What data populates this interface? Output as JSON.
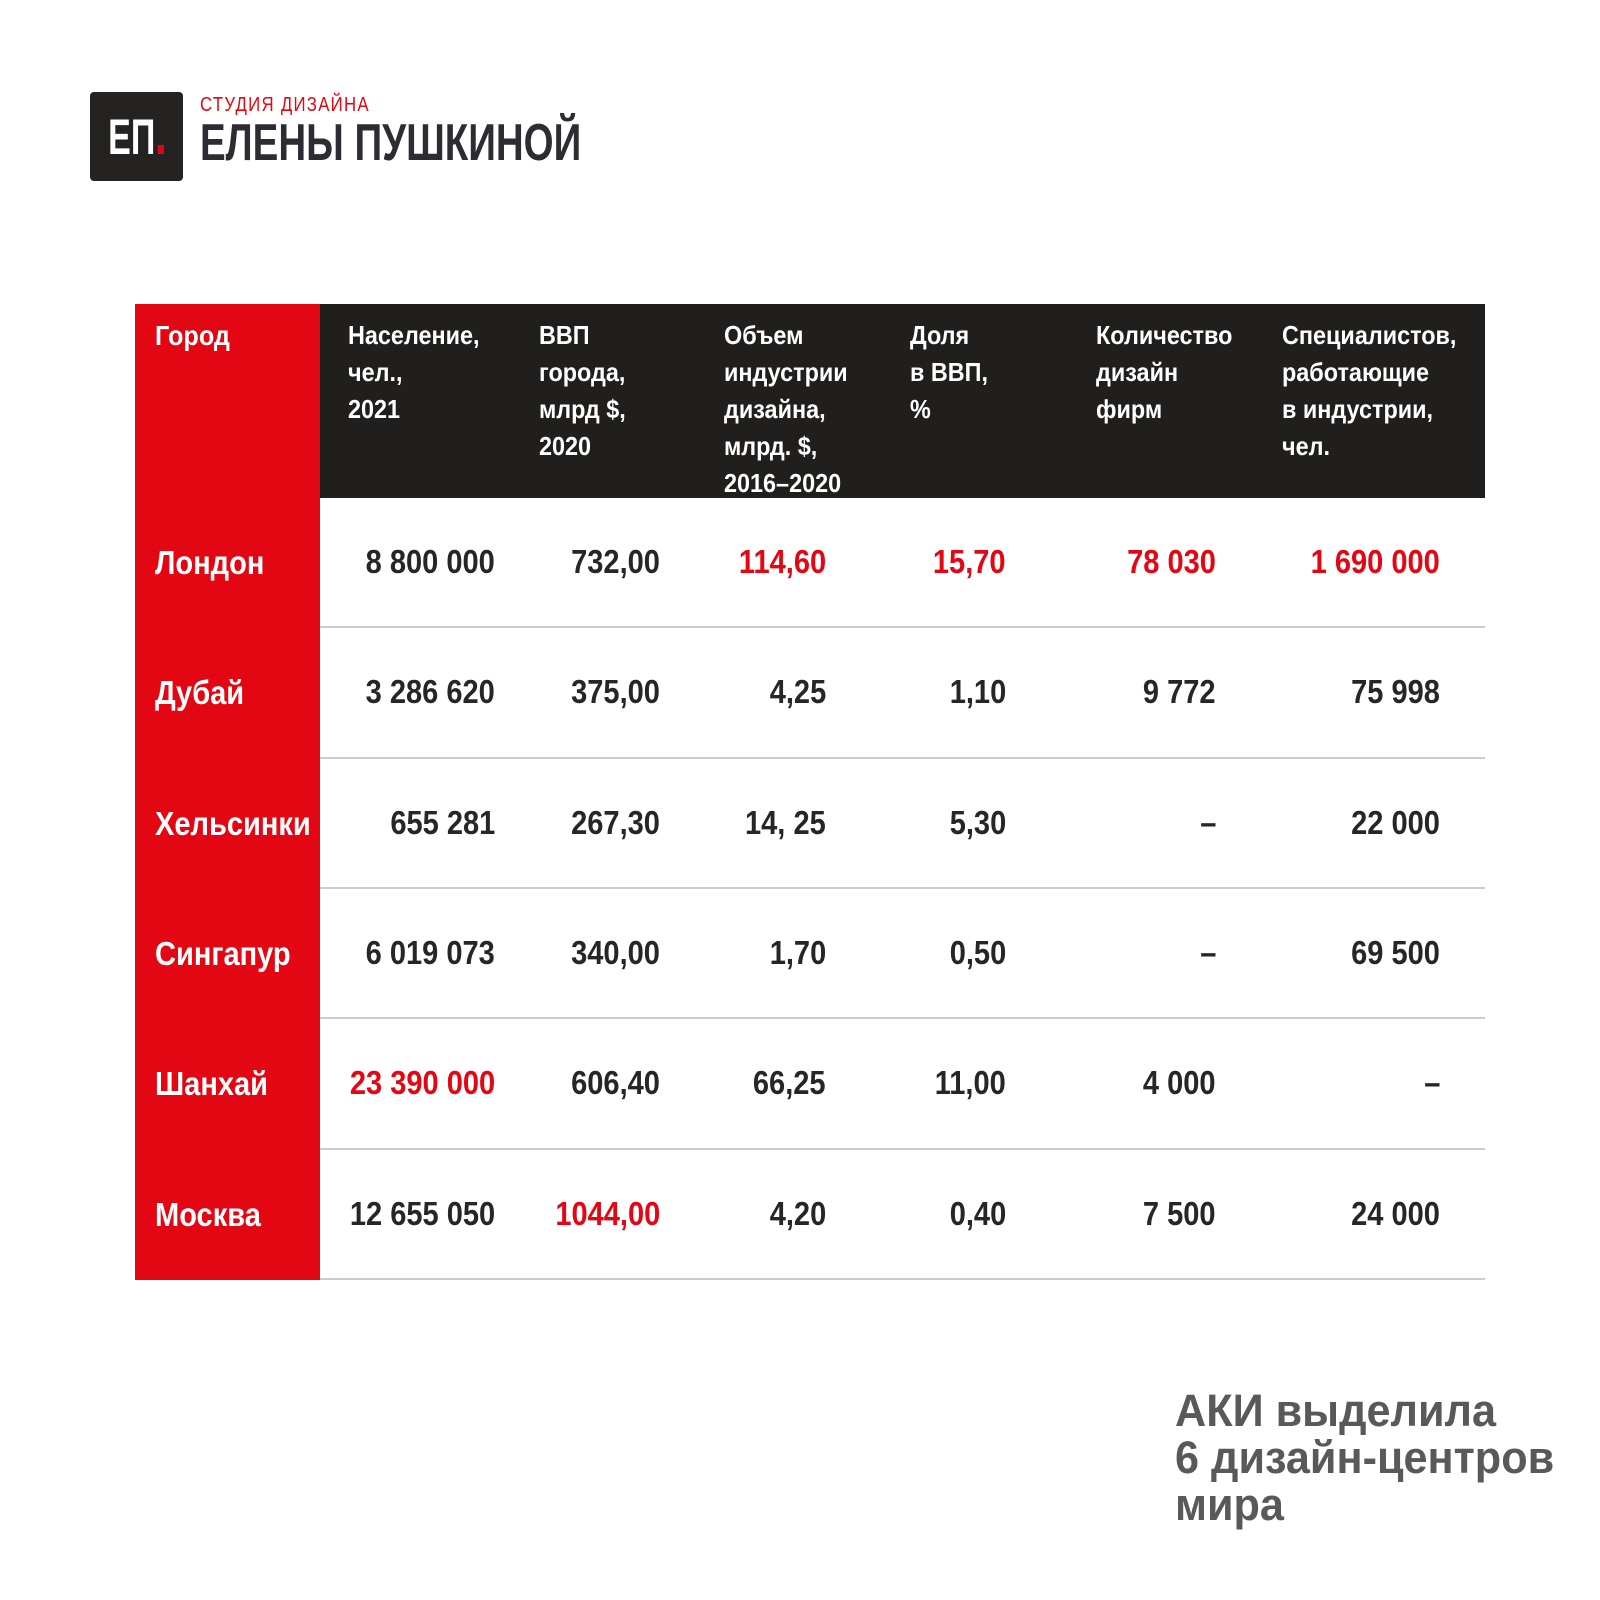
{
  "brand": {
    "monogram": "ЕП",
    "tagline": "СТУДИЯ ДИЗАЙНА",
    "name": "ЕЛЕНЫ ПУШКИНОЙ"
  },
  "table": {
    "columns": [
      {
        "label": "Город"
      },
      {
        "label": "Население,\nчел.,\n2021"
      },
      {
        "label": "ВВП\nгорода,\nмлрд $,\n2020"
      },
      {
        "label": "Объем\nиндустрии\nдизайна,\nмлрд. $,\n2016–2020"
      },
      {
        "label": "Доля\nв ВВП,\n%"
      },
      {
        "label": "Количество\nдизайн\nфирм"
      },
      {
        "label": "Специалистов,\nработающие\nв индустрии,\nчел."
      }
    ],
    "rows": [
      {
        "city": "Лондон",
        "cells": [
          {
            "text": "8 800 000",
            "red": false
          },
          {
            "text": "732,00",
            "red": false
          },
          {
            "text": "114,60",
            "red": true
          },
          {
            "text": "15,70",
            "red": true
          },
          {
            "text": "78 030",
            "red": true
          },
          {
            "text": "1 690 000",
            "red": true
          }
        ]
      },
      {
        "city": "Дубай",
        "cells": [
          {
            "text": "3 286 620",
            "red": false
          },
          {
            "text": "375,00",
            "red": false
          },
          {
            "text": "4,25",
            "red": false
          },
          {
            "text": "1,10",
            "red": false
          },
          {
            "text": "9 772",
            "red": false
          },
          {
            "text": "75 998",
            "red": false
          }
        ]
      },
      {
        "city": "Хельсинки",
        "cells": [
          {
            "text": "655 281",
            "red": false
          },
          {
            "text": "267,30",
            "red": false
          },
          {
            "text": "14, 25",
            "red": false
          },
          {
            "text": "5,30",
            "red": false
          },
          {
            "text": "–",
            "red": false
          },
          {
            "text": "22 000",
            "red": false
          }
        ]
      },
      {
        "city": "Сингапур",
        "cells": [
          {
            "text": "6 019 073",
            "red": false
          },
          {
            "text": "340,00",
            "red": false
          },
          {
            "text": "1,70",
            "red": false
          },
          {
            "text": "0,50",
            "red": false
          },
          {
            "text": "–",
            "red": false
          },
          {
            "text": "69 500",
            "red": false
          }
        ]
      },
      {
        "city": "Шанхай",
        "cells": [
          {
            "text": "23 390 000",
            "red": true
          },
          {
            "text": "606,40",
            "red": false
          },
          {
            "text": "66,25",
            "red": false
          },
          {
            "text": "11,00",
            "red": false
          },
          {
            "text": "4 000",
            "red": false
          },
          {
            "text": "–",
            "red": false
          }
        ]
      },
      {
        "city": "Москва",
        "cells": [
          {
            "text": "12 655 050",
            "red": false
          },
          {
            "text": "1044,00",
            "red": true
          },
          {
            "text": "4,20",
            "red": false
          },
          {
            "text": "0,40",
            "red": false
          },
          {
            "text": "7 500",
            "red": false
          },
          {
            "text": "24 000",
            "red": false
          }
        ]
      }
    ]
  },
  "caption": "АКИ выделила\n6 дизайн-центров\nмира",
  "colors": {
    "accent_red": "#e30613",
    "header_dark": "#201f1d",
    "value_dark": "#262626",
    "caption_grey": "#58595b",
    "separator": "#cccccc"
  }
}
